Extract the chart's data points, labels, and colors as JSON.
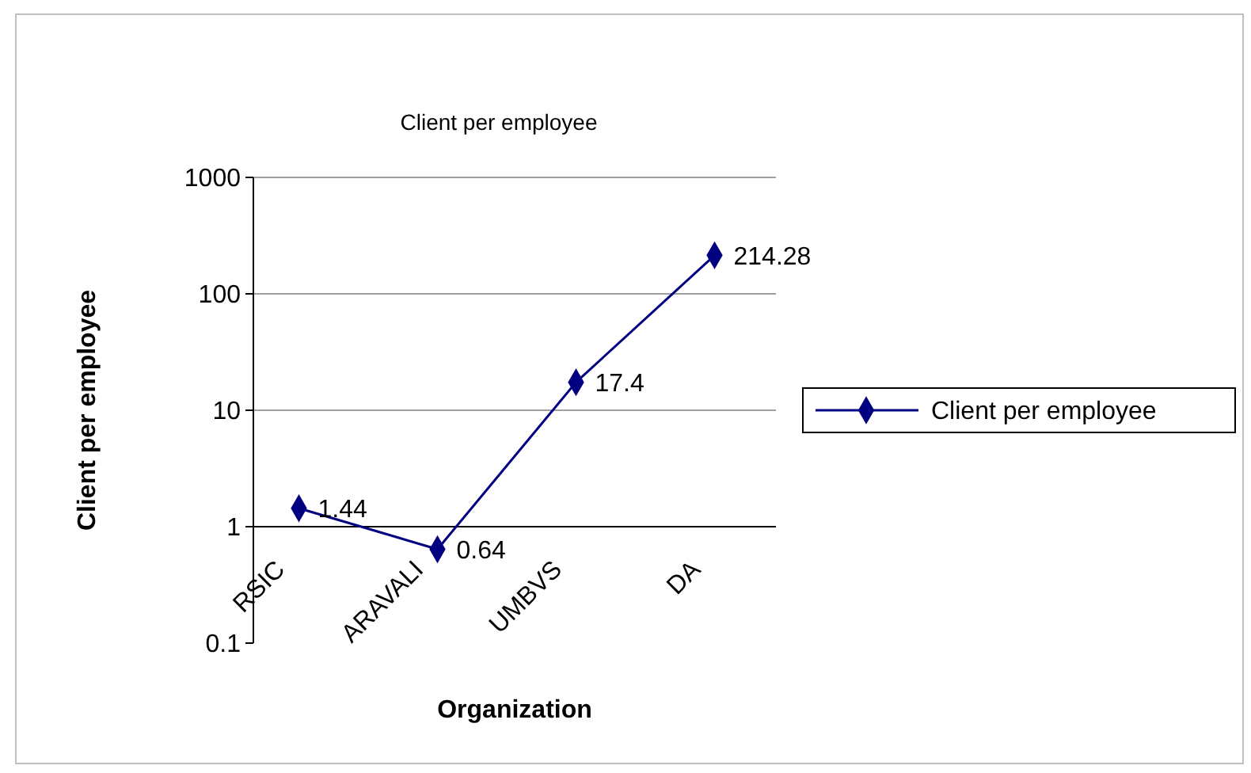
{
  "chart_data": {
    "type": "line",
    "title": "Client per employee",
    "xlabel": "Organization",
    "ylabel": "Client per employee",
    "categories": [
      "RSIC",
      "ARAVALI",
      "UMBVS",
      "DA"
    ],
    "series": [
      {
        "name": "Client per employee",
        "color": "#000080",
        "values": [
          1.44,
          0.64,
          17.4,
          214.28
        ]
      }
    ],
    "log": "y",
    "ylim": [
      0.1,
      1000
    ],
    "yticks": [
      0.1,
      1,
      10,
      100,
      1000
    ],
    "grid": "y",
    "legend": "right",
    "marker": "diamond",
    "line_style": "solid",
    "data_labels": true
  }
}
